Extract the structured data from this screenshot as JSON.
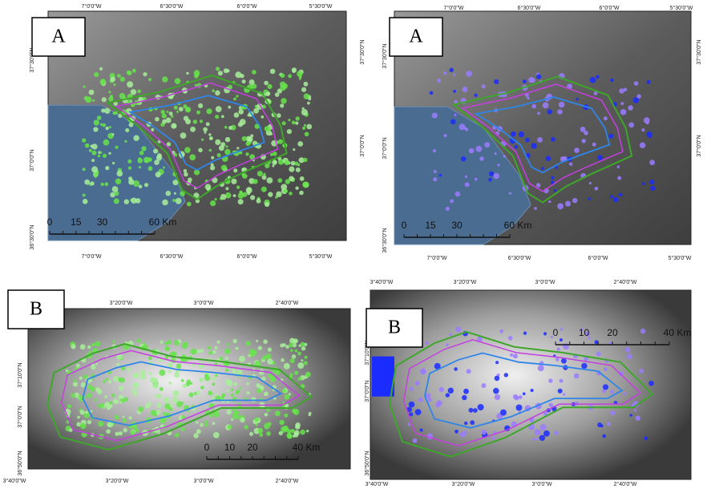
{
  "panels": [
    {
      "label": "A",
      "top_labels": [
        "7°0'0\"W",
        "6°30'0\"W",
        "6°0'0\"W",
        "5°30'0\"W"
      ],
      "bottom_labels": [
        "7°0'0\"W",
        "6°30'0\"W",
        "6°0'0\"W",
        "5°30'0\"W"
      ],
      "left_labels": [
        "37°30'0\"N",
        "37°0'0\"N",
        "36°30'0\"N"
      ],
      "right_labels": [
        "37°30'0\"N",
        "37°0'0\"N"
      ],
      "scale_labels": [
        "0",
        "15",
        "30",
        "60 Km"
      ]
    },
    {
      "label": "A",
      "top_labels": [
        "7°0'0\"W",
        "6°30'0\"W",
        "6°0'0\"W",
        "5°30'0\"W"
      ],
      "bottom_labels": [
        "7°0'0\"W",
        "6°30'0\"W",
        "6°0'0\"W",
        "5°30'0\"W"
      ],
      "left_labels": [
        "37°30'0\"N",
        "37°0'0\"N",
        "36°30'0\"N"
      ],
      "right_labels": [
        "37°30'0\"N",
        "37°0'0\"N"
      ],
      "scale_labels": [
        "0",
        "15",
        "30",
        "60 Km"
      ]
    },
    {
      "label": "B",
      "top_labels": [
        "3°20'0\"W",
        "3°0'0\"W",
        "2°40'0\"W"
      ],
      "bottom_labels": [
        "3°40'0\"W",
        "3°20'0\"W",
        "3°0'0\"W",
        "2°40'0\"W"
      ],
      "left_labels": [
        "37°10'0\"N",
        "37°0'0\"N",
        "36°50'0\"N"
      ],
      "right_labels": [],
      "scale_labels": [
        "0",
        "10",
        "20",
        "40 Km"
      ]
    },
    {
      "label": "B",
      "top_labels": [
        "3°40'0\"W",
        "3°20'0\"W",
        "3°0'0\"W",
        "2°40'0\"W"
      ],
      "bottom_labels": [
        "3°40'0\"W",
        "3°20'0\"W",
        "3°0'0\"W",
        "2°40'0\"W"
      ],
      "left_labels": [
        "37°10'0\"N",
        "37°0'0\"N",
        "36°50'0\"N"
      ],
      "right_labels": [],
      "scale_labels": [
        "0",
        "10",
        "20",
        "40 Km"
      ]
    }
  ]
}
